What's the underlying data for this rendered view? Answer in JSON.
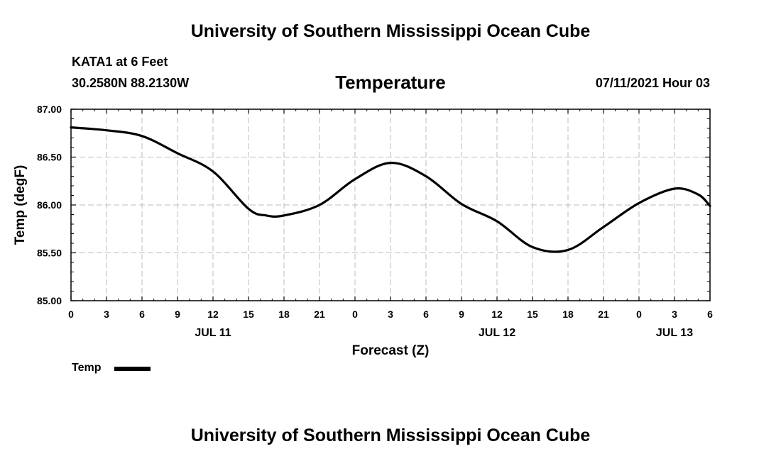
{
  "header": {
    "title": "University of Southern Mississippi Ocean Cube",
    "station": "KATA1 at 6 Feet",
    "coordinates": "30.2580N  88.2130W",
    "variable": "Temperature",
    "datetime": "07/11/2021 Hour 03"
  },
  "footer": {
    "title": "University of Southern Mississippi Ocean Cube"
  },
  "legend": {
    "label": "Temp",
    "color": "#000000"
  },
  "chart_data": {
    "type": "line",
    "title": "Temperature",
    "xlabel": "Forecast (Z)",
    "ylabel": "Temp (degF)",
    "xlim": [
      0,
      54
    ],
    "ylim": [
      85.0,
      87.0
    ],
    "grid": true,
    "legend_position": "bottom-left",
    "x_ticks": [
      0,
      3,
      6,
      9,
      12,
      15,
      18,
      21,
      24,
      27,
      30,
      33,
      36,
      39,
      42,
      45,
      48,
      51,
      54
    ],
    "x_tick_labels": [
      "0",
      "3",
      "6",
      "9",
      "12",
      "15",
      "18",
      "21",
      "0",
      "3",
      "6",
      "9",
      "12",
      "15",
      "18",
      "21",
      "0",
      "3",
      "6"
    ],
    "date_labels": [
      {
        "x": 12,
        "label": "JUL 11"
      },
      {
        "x": 36,
        "label": "JUL 12"
      },
      {
        "x": 51,
        "label": "JUL 13"
      }
    ],
    "y_ticks": [
      85.0,
      85.5,
      86.0,
      86.5,
      87.0
    ],
    "y_tick_labels": [
      "85.00",
      "85.50",
      "86.00",
      "86.50",
      "87.00"
    ],
    "series": [
      {
        "name": "Temp",
        "color": "#000000",
        "x": [
          0,
          3,
          6,
          9,
          12,
          15,
          16.5,
          18,
          21,
          24,
          27,
          30,
          33,
          36,
          39,
          42,
          45,
          48,
          51,
          53,
          54
        ],
        "y": [
          86.81,
          86.78,
          86.72,
          86.54,
          86.35,
          85.96,
          85.89,
          85.89,
          86.0,
          86.27,
          86.44,
          86.3,
          86.01,
          85.83,
          85.56,
          85.53,
          85.77,
          86.02,
          86.17,
          86.11,
          85.99
        ]
      }
    ]
  }
}
